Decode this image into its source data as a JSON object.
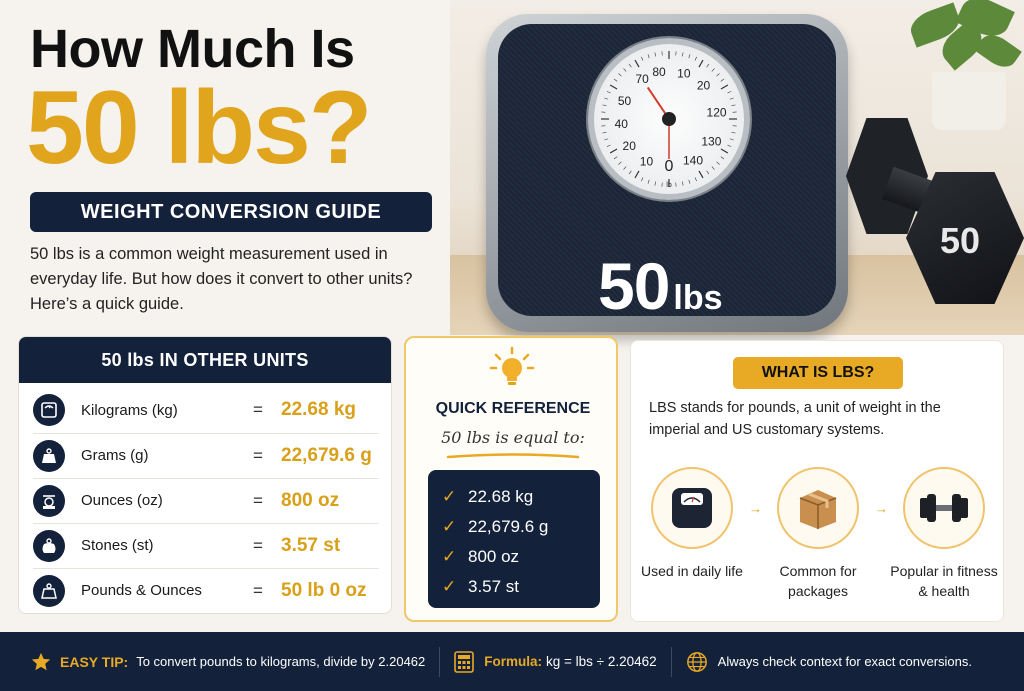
{
  "headline": {
    "line1": "How Much Is",
    "line2": "50 lbs?"
  },
  "guide_label": "WEIGHT CONVERSION GUIDE",
  "intro": "50 lbs is a common weight measurement used in everyday life. But how does it convert to other units? Here’s a quick guide.",
  "scale": {
    "readout_value": "50",
    "readout_unit": "lbs",
    "dial_numbers": [
      "0",
      "10",
      "20",
      "40",
      "50",
      "70",
      "80",
      "10",
      "20",
      "120",
      "130",
      "140"
    ],
    "dial_unit": "lb",
    "needle_value": 50
  },
  "dumbbell_label": "50",
  "units_card": {
    "title": "50 lbs IN OTHER UNITS",
    "rows": [
      {
        "icon": "scale-icon",
        "name": "Kilograms (kg)",
        "eq": "=",
        "value": "22.68 kg"
      },
      {
        "icon": "weight-icon",
        "name": "Grams (g)",
        "eq": "=",
        "value": "22,679.6 g"
      },
      {
        "icon": "kitchen-scale-icon",
        "name": "Ounces (oz)",
        "eq": "=",
        "value": "800 oz"
      },
      {
        "icon": "stone-weight-icon",
        "name": "Stones (st)",
        "eq": "=",
        "value": "3.57 st"
      },
      {
        "icon": "weight-icon",
        "name": "Pounds & Ounces",
        "eq": "=",
        "value": "50 lb 0 oz"
      }
    ]
  },
  "quick_reference": {
    "title": "QUICK REFERENCE",
    "subtitle": "50 lbs is equal to:",
    "items": [
      "22.68 kg",
      "22,679.6 g",
      "800 oz",
      "3.57 st"
    ]
  },
  "what_is_lbs": {
    "title": "WHAT IS LBS?",
    "description": "LBS stands for pounds, a unit of weight in the imperial and US customary systems.",
    "features": [
      {
        "icon": "bathroom-scale-icon",
        "label": "Used in daily life"
      },
      {
        "icon": "package-icon",
        "label": "Common for packages"
      },
      {
        "icon": "dumbbell-icon",
        "label": "Popular in fitness & health"
      }
    ]
  },
  "footer": {
    "tip_label": "EASY TIP:",
    "tip_text": "To convert pounds to kilograms, divide by 2.20462",
    "formula_label": "Formula:",
    "formula_text": "kg = lbs ÷ 2.20462",
    "check_text": "Always check context for exact conversions."
  },
  "colors": {
    "navy": "#13213b",
    "gold": "#e0a51c",
    "background": "#f6f3ee"
  }
}
